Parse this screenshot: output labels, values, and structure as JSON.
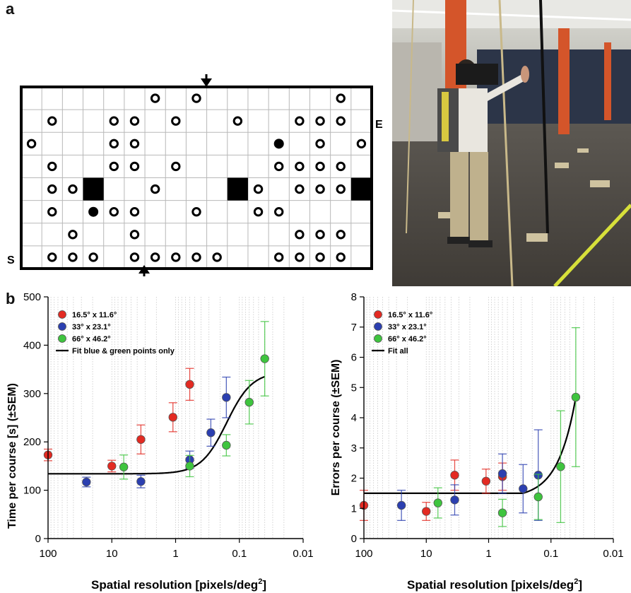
{
  "figure": {
    "panel_a_label": "a",
    "panel_b_label": "b"
  },
  "maze": {
    "label_start": "S",
    "label_end": "E",
    "rows": [
      [
        null,
        null,
        null,
        null,
        null,
        null,
        "o",
        null,
        "o",
        null,
        null,
        null,
        null,
        null,
        null,
        "o",
        null
      ],
      [
        null,
        "o",
        null,
        null,
        "o",
        "o",
        null,
        "o",
        null,
        null,
        "o",
        null,
        null,
        "o",
        "o",
        "o",
        null
      ],
      [
        "o",
        null,
        null,
        null,
        "o",
        "o",
        null,
        null,
        null,
        null,
        null,
        null,
        "f",
        null,
        "o",
        null,
        "o"
      ],
      [
        null,
        "o",
        null,
        null,
        "o",
        "o",
        null,
        "o",
        null,
        null,
        null,
        null,
        "o",
        "o",
        "o",
        "o",
        null
      ],
      [
        null,
        "o",
        "o",
        "b",
        null,
        null,
        "o",
        null,
        null,
        null,
        "b",
        "o",
        null,
        "o",
        "o",
        "o",
        "b"
      ],
      [
        null,
        "o",
        null,
        "f",
        "o",
        "o",
        null,
        null,
        "o",
        null,
        null,
        "o",
        "o",
        null,
        null,
        null,
        null
      ],
      [
        null,
        null,
        "o",
        null,
        null,
        "o",
        null,
        null,
        null,
        null,
        null,
        null,
        null,
        "o",
        "o",
        "o",
        null
      ],
      [
        null,
        "o",
        "o",
        "o",
        null,
        "o",
        "o",
        "o",
        "o",
        "o",
        null,
        null,
        "o",
        "o",
        "o",
        "o",
        null
      ]
    ]
  },
  "photo": {
    "description_icon": "person-with-backpack-photo"
  },
  "chart_data": [
    {
      "type": "scatter",
      "title": "",
      "xlabel": "Spatial resolution [pixels/deg2]",
      "xlabel_main": "Spatial resolution [pixels/deg",
      "xlabel_sup": "2",
      "xlabel_end": "]",
      "ylabel": "Time per course [s] (±SEM)",
      "x_scale": "log-reversed",
      "xlim": [
        100,
        0.01
      ],
      "xticks": [
        100,
        10,
        1,
        0.1,
        0.01
      ],
      "xtick_labels": [
        "100",
        "10",
        "1",
        "0.1",
        "0.01"
      ],
      "ylim": [
        0,
        500
      ],
      "yticks": [
        0,
        100,
        200,
        300,
        400,
        500
      ],
      "grid": "vertical minor dotted",
      "legend_position": "top-left",
      "legend_fit_label": "Fit blue & green points only",
      "series": [
        {
          "name": "16.5° x 11.6°",
          "color": "#e32a22",
          "points": [
            {
              "x": 100,
              "y": 173,
              "err": 12
            },
            {
              "x": 10,
              "y": 150,
              "err": 12
            },
            {
              "x": 3.5,
              "y": 205,
              "err": 30
            },
            {
              "x": 1.1,
              "y": 251,
              "err": 30
            },
            {
              "x": 0.6,
              "y": 319,
              "err": 33
            }
          ]
        },
        {
          "name": "33° x 23.1°",
          "color": "#2b3fb0",
          "points": [
            {
              "x": 25,
              "y": 117,
              "err": 10
            },
            {
              "x": 3.5,
              "y": 118,
              "err": 13
            },
            {
              "x": 0.6,
              "y": 163,
              "err": 18
            },
            {
              "x": 0.28,
              "y": 219,
              "err": 28
            },
            {
              "x": 0.16,
              "y": 292,
              "err": 42
            }
          ]
        },
        {
          "name": "66° x 46.2°",
          "color": "#3ec43e",
          "points": [
            {
              "x": 6.5,
              "y": 148,
              "err": 25
            },
            {
              "x": 0.6,
              "y": 150,
              "err": 22
            },
            {
              "x": 0.16,
              "y": 193,
              "err": 22
            },
            {
              "x": 0.07,
              "y": 282,
              "err": 45
            },
            {
              "x": 0.04,
              "y": 372,
              "err": 77
            }
          ]
        }
      ],
      "fit": {
        "base": 134,
        "top": 345,
        "mid_log": -0.8,
        "width": 0.2,
        "x_from": 100,
        "x_to": 0.04
      }
    },
    {
      "type": "scatter",
      "title": "",
      "xlabel": "Spatial resolution [pixels/deg2]",
      "xlabel_main": "Spatial resolution [pixels/deg",
      "xlabel_sup": "2",
      "xlabel_end": "]",
      "ylabel": "Errors per course (±SEM)",
      "x_scale": "log-reversed",
      "xlim": [
        100,
        0.01
      ],
      "xticks": [
        100,
        10,
        1,
        0.1,
        0.01
      ],
      "xtick_labels": [
        "100",
        "10",
        "1",
        "0.1",
        "0.01"
      ],
      "ylim": [
        0,
        8
      ],
      "yticks": [
        0,
        1,
        2,
        3,
        4,
        5,
        6,
        7,
        8
      ],
      "grid": "vertical minor dotted",
      "legend_position": "top-left",
      "legend_fit_label": "Fit all",
      "series": [
        {
          "name": "16.5° x 11.6°",
          "color": "#e32a22",
          "points": [
            {
              "x": 100,
              "y": 1.1,
              "err": 0.5
            },
            {
              "x": 10,
              "y": 0.9,
              "err": 0.3
            },
            {
              "x": 3.5,
              "y": 2.1,
              "err": 0.5
            },
            {
              "x": 1.1,
              "y": 1.9,
              "err": 0.4
            },
            {
              "x": 0.6,
              "y": 2.05,
              "err": 0.45
            }
          ]
        },
        {
          "name": "33° x 23.1°",
          "color": "#2b3fb0",
          "points": [
            {
              "x": 25,
              "y": 1.1,
              "err": 0.5
            },
            {
              "x": 3.5,
              "y": 1.28,
              "err": 0.5
            },
            {
              "x": 0.6,
              "y": 2.15,
              "err": 0.65
            },
            {
              "x": 0.28,
              "y": 1.65,
              "err": 0.8
            },
            {
              "x": 0.16,
              "y": 2.1,
              "err": 1.5
            }
          ]
        },
        {
          "name": "66° x 46.2°",
          "color": "#3ec43e",
          "points": [
            {
              "x": 6.5,
              "y": 1.18,
              "err": 0.5
            },
            {
              "x": 0.6,
              "y": 0.85,
              "err": 0.45
            },
            {
              "x": 0.16,
              "y": 1.38,
              "err": 0.75
            },
            {
              "x": 0.07,
              "y": 2.38,
              "err": 1.85
            },
            {
              "x": 0.04,
              "y": 4.68,
              "err": 2.3
            }
          ]
        }
      ],
      "fit": {
        "base": 1.5,
        "exp_scale": 4.5,
        "exp_rate": 3.5,
        "x_from": 100,
        "x_to": 0.04
      }
    }
  ]
}
